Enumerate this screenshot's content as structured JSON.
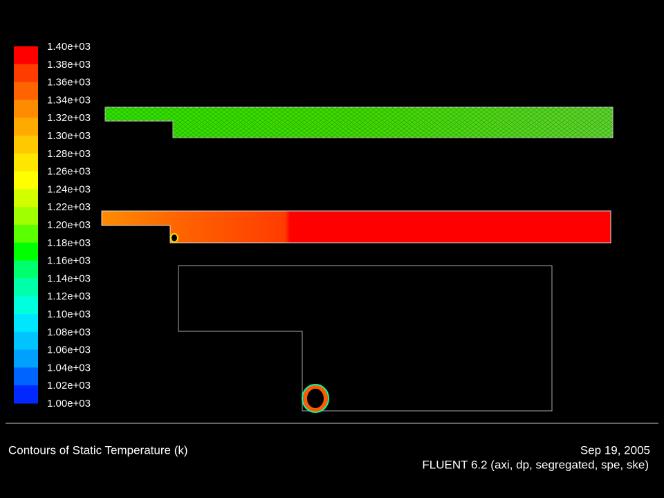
{
  "colorbar": {
    "labels": [
      "1.40e+03",
      "1.38e+03",
      "1.36e+03",
      "1.34e+03",
      "1.32e+03",
      "1.30e+03",
      "1.28e+03",
      "1.26e+03",
      "1.24e+03",
      "1.22e+03",
      "1.20e+03",
      "1.18e+03",
      "1.16e+03",
      "1.14e+03",
      "1.12e+03",
      "1.10e+03",
      "1.08e+03",
      "1.06e+03",
      "1.04e+03",
      "1.02e+03",
      "1.00e+03"
    ],
    "colors": [
      "#ff0000",
      "#ff3c00",
      "#ff6400",
      "#ff8c00",
      "#ffaa00",
      "#ffc800",
      "#ffe600",
      "#ffff00",
      "#d2ff00",
      "#a0ff00",
      "#5aff00",
      "#00ff00",
      "#00ff6e",
      "#00ffaa",
      "#00ffdc",
      "#00e6ff",
      "#00c3ff",
      "#00a0ff",
      "#0064ff",
      "#0028ff"
    ]
  },
  "footer": {
    "title": "Contours of Static Temperature (k)",
    "date": "Sep 19, 2005",
    "version": "FLUENT 6.2 (axi, dp, segregated, spe, ske)"
  }
}
